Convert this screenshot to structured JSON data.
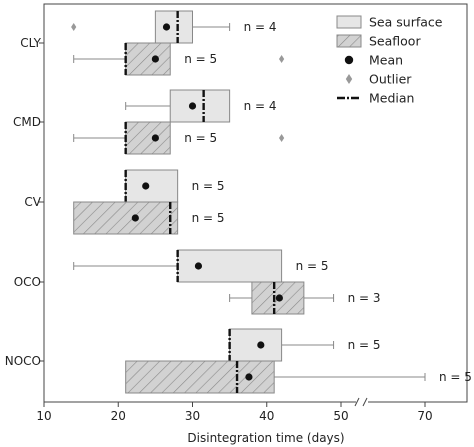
{
  "chart_data": {
    "type": "boxplot",
    "xlabel": "Disintegration time (days)",
    "ylabel": "",
    "x_ticks": [
      {
        "value": 10,
        "label": "10"
      },
      {
        "value": 20,
        "label": "20"
      },
      {
        "value": 30,
        "label": "30"
      },
      {
        "value": 40,
        "label": "40"
      },
      {
        "value": 50,
        "label": "50"
      },
      {
        "value": 70,
        "label": "70"
      }
    ],
    "axis_break": "between 50 and 60",
    "xlim": [
      10,
      75
    ],
    "grid": false,
    "legend_position": "top-right",
    "legend": [
      {
        "key": "sea",
        "label": "Sea surface",
        "symbol": "box-plain"
      },
      {
        "key": "floor",
        "label": "Seafloor",
        "symbol": "box-hatched"
      },
      {
        "key": "mean",
        "label": "Mean",
        "symbol": "dot"
      },
      {
        "key": "outlier",
        "label": "Outlier",
        "symbol": "diamond"
      },
      {
        "key": "median",
        "label": "Median",
        "symbol": "dash-dot-line"
      }
    ],
    "colors": {
      "sea_fill": "#e6e6e6",
      "floor_fill": "#cfcfcf",
      "stroke": "#888888",
      "outlier": "#999999",
      "dark": "#111111"
    },
    "categories": [
      "CLY",
      "CMD",
      "CV",
      "OCO",
      "NOCO"
    ],
    "groups": [
      {
        "category": "CLY",
        "boxes": [
          {
            "series": "sea",
            "whisker_low": 25,
            "q1": 25,
            "median": 28,
            "q3": 30,
            "whisker_high": 35,
            "mean": 26.5,
            "outliers": [
              14
            ],
            "n_label": "n = 4"
          },
          {
            "series": "floor",
            "whisker_low": 14,
            "q1": 21,
            "median": 21,
            "q3": 27,
            "whisker_high": 27,
            "mean": 25,
            "outliers": [
              42
            ],
            "n_label": "n = 5"
          }
        ]
      },
      {
        "category": "CMD",
        "boxes": [
          {
            "series": "sea",
            "whisker_low": 21,
            "q1": 27,
            "median": 31.5,
            "q3": 35,
            "whisker_high": 35,
            "mean": 30,
            "outliers": [],
            "n_label": "n = 4"
          },
          {
            "series": "floor",
            "whisker_low": 14,
            "q1": 21,
            "median": 21,
            "q3": 27,
            "whisker_high": 27,
            "mean": 25,
            "outliers": [
              42
            ],
            "n_label": "n = 5"
          }
        ]
      },
      {
        "category": "CV",
        "boxes": [
          {
            "series": "sea",
            "whisker_low": 21,
            "q1": 21,
            "median": 21,
            "q3": 28,
            "whisker_high": 28,
            "mean": 23.7,
            "outliers": [],
            "n_label": "n = 5"
          },
          {
            "series": "floor",
            "whisker_low": 14,
            "q1": 14,
            "median": 27,
            "q3": 28,
            "whisker_high": 28,
            "mean": 22.3,
            "outliers": [],
            "n_label": "n = 5"
          }
        ]
      },
      {
        "category": "OCO",
        "boxes": [
          {
            "series": "sea",
            "whisker_low": 14,
            "q1": 28,
            "median": 28,
            "q3": 42,
            "whisker_high": 42,
            "mean": 30.8,
            "outliers": [],
            "n_label": "n = 5"
          },
          {
            "series": "floor",
            "whisker_low": 35,
            "q1": 38,
            "median": 41,
            "q3": 45,
            "whisker_high": 49,
            "mean": 41.7,
            "outliers": [],
            "n_label": "n = 3"
          }
        ]
      },
      {
        "category": "NOCO",
        "boxes": [
          {
            "series": "sea",
            "whisker_low": 35,
            "q1": 35,
            "median": 35,
            "q3": 42,
            "whisker_high": 49,
            "mean": 39.2,
            "outliers": [],
            "n_label": "n = 5"
          },
          {
            "series": "floor",
            "whisker_low": 21,
            "q1": 21,
            "median": 36,
            "q3": 41,
            "whisker_high": 70,
            "mean": 37.6,
            "outliers": [],
            "n_label": "n = 5"
          }
        ]
      }
    ]
  }
}
